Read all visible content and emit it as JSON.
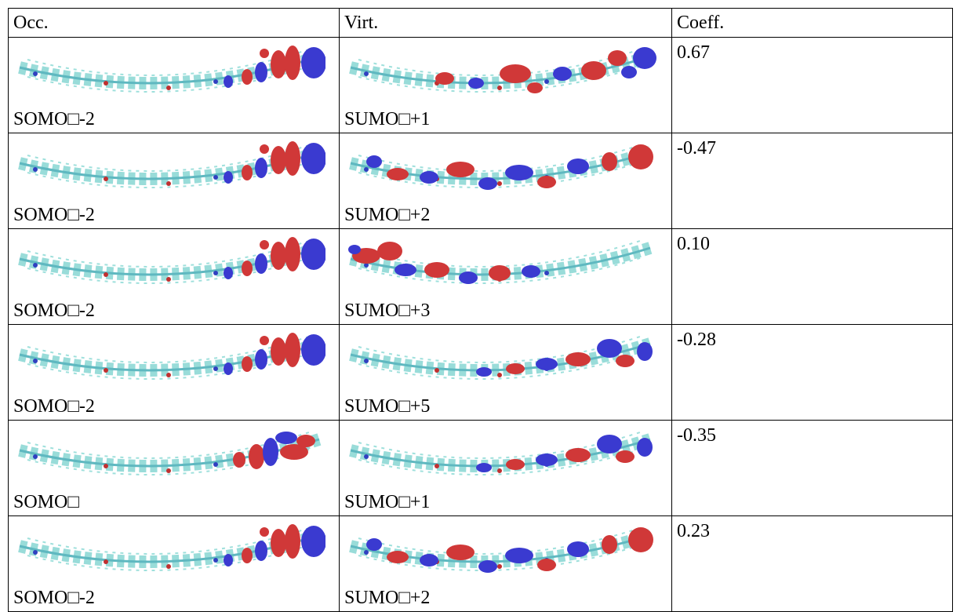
{
  "table": {
    "header": [
      "Occ.",
      "Virt.",
      "Coeff."
    ],
    "rows": [
      {
        "occ": "SOMO□-2",
        "virt": "SUMO□+1",
        "coeff": "0.67"
      },
      {
        "occ": "SOMO□-2",
        "virt": "SUMO□+2",
        "coeff": "-0.47"
      },
      {
        "occ": "SOMO□-2",
        "virt": "SUMO□+3",
        "coeff": "0.10"
      },
      {
        "occ": "SOMO□-2",
        "virt": "SUMO□+5",
        "coeff": "-0.28"
      },
      {
        "occ": "SOMO□",
        "virt": "SUMO□+1",
        "coeff": "-0.35"
      },
      {
        "occ": "SOMO□-2",
        "virt": "SUMO□+2",
        "coeff": "0.23"
      }
    ]
  }
}
